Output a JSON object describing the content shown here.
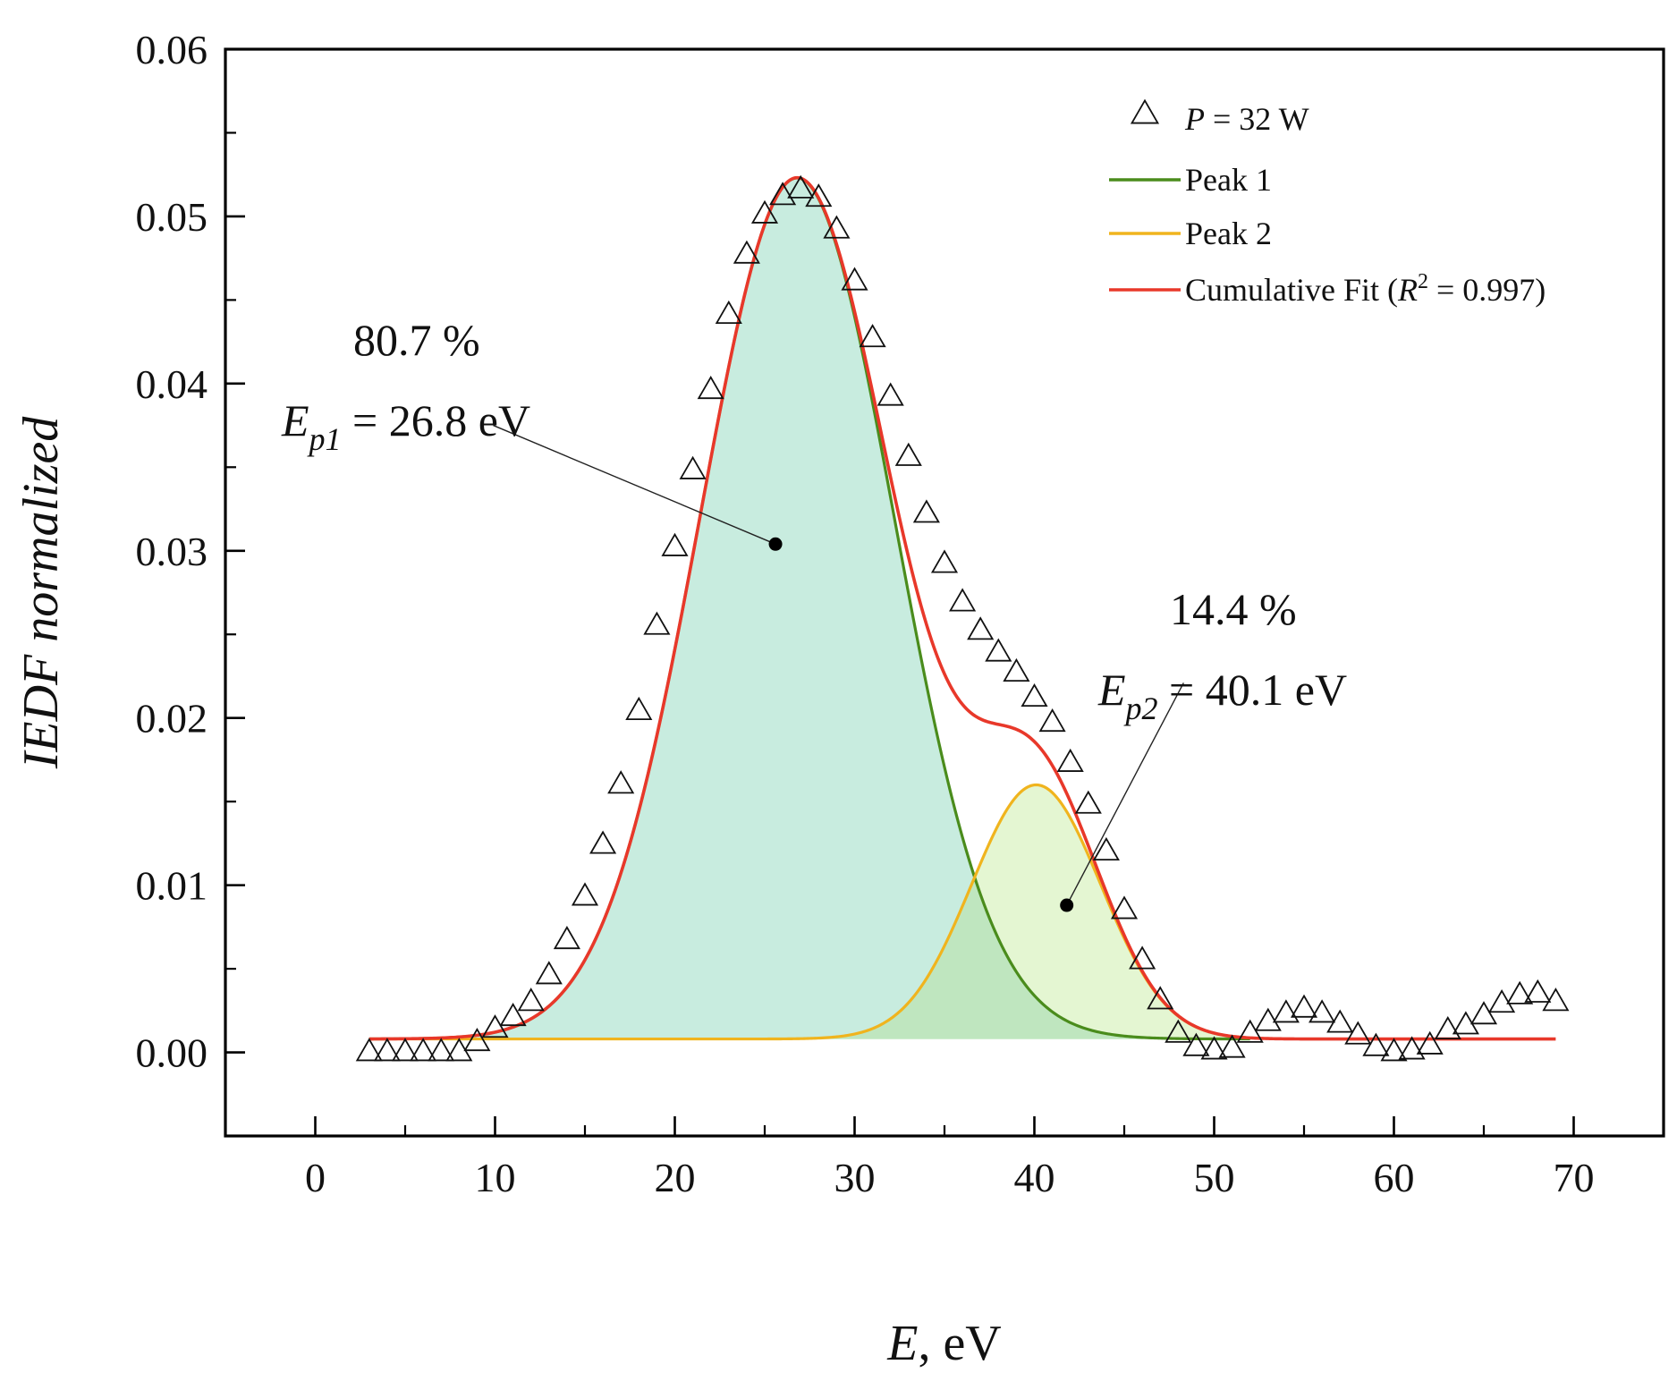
{
  "chart_data": {
    "type": "scatter",
    "title": "",
    "xlabel": {
      "var": "E",
      "rest": ", eV"
    },
    "ylabel": "IEDF normalized",
    "xlim": [
      -5,
      75
    ],
    "ylim": [
      -0.005,
      0.06
    ],
    "x_ticks": [
      0,
      10,
      20,
      30,
      40,
      50,
      60,
      70
    ],
    "x_tick_labels": [
      "0",
      "10",
      "20",
      "30",
      "40",
      "50",
      "60",
      "70"
    ],
    "y_ticks": [
      0.0,
      0.01,
      0.02,
      0.03,
      0.04,
      0.05,
      0.06
    ],
    "y_tick_labels": [
      "0.00",
      "0.01",
      "0.02",
      "0.03",
      "0.04",
      "0.05",
      "0.06"
    ],
    "grid": false,
    "legend_position": "top-right",
    "colors": {
      "peak1_line": "#4a8c1c",
      "peak1_fill": "#c8ecdf",
      "peak2_line": "#f0b41e",
      "peak2_fill": "#e4f6d2",
      "overlap_fill": "#bfe6bf",
      "fit_line": "#e8382a",
      "markers": "#111111"
    },
    "series": [
      {
        "name": "P = 32 W",
        "legend": {
          "var": "P",
          "rest": " = 32 W"
        },
        "kind": "markers",
        "marker": "triangle-open",
        "x": [
          3,
          4,
          5,
          6,
          7,
          8,
          9,
          10,
          11,
          12,
          13,
          14,
          15,
          16,
          17,
          18,
          19,
          20,
          21,
          22,
          23,
          24,
          25,
          26,
          27,
          28,
          29,
          30,
          31,
          32,
          33,
          34,
          35,
          36,
          37,
          38,
          39,
          40,
          41,
          42,
          43,
          44,
          45,
          46,
          47,
          48,
          49,
          50,
          51,
          52,
          53,
          54,
          55,
          56,
          57,
          58,
          59,
          60,
          61,
          62,
          63,
          64,
          65,
          66,
          67,
          68,
          69
        ],
        "y": [
          0.0,
          0.0,
          0.0,
          0.0,
          0.0,
          0.0,
          0.0006,
          0.0014,
          0.0021,
          0.003,
          0.0046,
          0.0067,
          0.0093,
          0.0124,
          0.016,
          0.0204,
          0.0255,
          0.0302,
          0.0348,
          0.0396,
          0.0441,
          0.0477,
          0.0501,
          0.0512,
          0.0516,
          0.0511,
          0.0492,
          0.0461,
          0.0427,
          0.0392,
          0.0356,
          0.0322,
          0.0292,
          0.0269,
          0.0252,
          0.0239,
          0.0227,
          0.0212,
          0.0197,
          0.0173,
          0.0148,
          0.012,
          0.0085,
          0.0055,
          0.0031,
          0.0011,
          0.0003,
          0.0001,
          0.0002,
          0.0011,
          0.0018,
          0.0023,
          0.0026,
          0.0023,
          0.0017,
          0.001,
          0.0003,
          0.0,
          0.0001,
          0.0004,
          0.0013,
          0.0016,
          0.0022,
          0.0029,
          0.0034,
          0.0035,
          0.003
        ]
      },
      {
        "name": "Peak 1",
        "kind": "gaussian",
        "center": 26.8,
        "amplitude": 0.0515,
        "sigma": 5.4,
        "baseline": 0.0008,
        "x_range": [
          3,
          52
        ]
      },
      {
        "name": "Peak 2",
        "kind": "gaussian",
        "center": 40.1,
        "amplitude": 0.0152,
        "sigma": 3.6,
        "baseline": 0.0008,
        "x_range": [
          3,
          52
        ]
      },
      {
        "name": "Cumulative Fit",
        "legend": {
          "pre": "Cumulative Fit (",
          "var": "R",
          "sup": "2",
          "rest": " = 0.997)"
        },
        "kind": "sum",
        "baseline": 0.0008,
        "x_range": [
          3,
          69
        ]
      }
    ],
    "annotations": [
      {
        "percent": "80.7 %",
        "label_var": "E",
        "label_sub": "p1",
        "label_rest": " = 26.8 eV",
        "point": [
          25.6,
          0.0304
        ],
        "leader_from": [
          9.9,
          0.0375
        ]
      },
      {
        "percent": "14.4 %",
        "label_var": "E",
        "label_sub": "p2",
        "label_rest": " = 40.1 eV",
        "point": [
          41.8,
          0.0088
        ],
        "leader_from": [
          48.3,
          0.0221
        ]
      }
    ]
  }
}
